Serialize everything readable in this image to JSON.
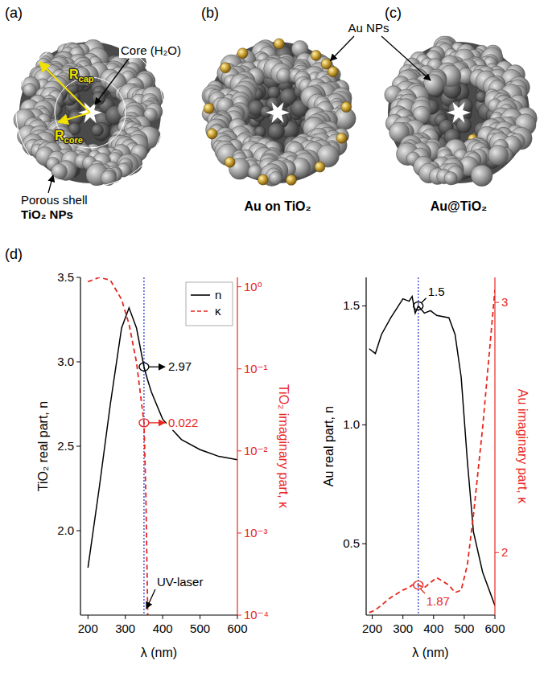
{
  "chart_data": [
    {
      "type": "line",
      "xlabel": "λ (nm)",
      "ylabel": "TiO₂ real part, n",
      "y2label": "TiO₂ imaginary part, κ",
      "x": [
        200,
        230,
        260,
        290,
        310,
        330,
        350,
        355,
        360,
        370,
        400,
        450,
        500,
        550,
        600
      ],
      "series": [
        {
          "name": "n",
          "color": "#000000",
          "line_style": "solid",
          "values": [
            1.78,
            2.25,
            2.75,
            3.2,
            3.32,
            3.2,
            2.97,
            2.93,
            2.89,
            2.82,
            2.66,
            2.54,
            2.48,
            2.44,
            2.42
          ]
        },
        {
          "name": "κ",
          "color": "#e8271f",
          "line_style": "dashed",
          "axis": "y2",
          "values": [
            1.15,
            1.3,
            1.2,
            0.7,
            0.35,
            0.12,
            0.022,
            0.003,
            0.0001,
            null,
            null,
            null,
            null,
            null,
            null
          ]
        }
      ],
      "xlim": [
        180,
        600
      ],
      "xticks": [
        200,
        300,
        400,
        500,
        600
      ],
      "ylim": [
        1.5,
        3.5
      ],
      "yticks": [
        {
          "value": 2,
          "label": "2.0"
        },
        2.5,
        {
          "value": 3,
          "label": "3.0"
        },
        3.5
      ],
      "y2lim": [
        0.0001,
        1.3
      ],
      "y2ticks": [
        {
          "value": 0.0001,
          "label": "10⁻⁴"
        },
        {
          "value": 0.001,
          "label": "10⁻³"
        },
        {
          "value": 0.01,
          "label": "10⁻²"
        },
        {
          "value": 0.1,
          "label": "10⁻¹"
        },
        {
          "value": 1,
          "label": "10⁰"
        }
      ],
      "log": "y2",
      "legend": "upper right",
      "vline": 350,
      "annotations": [
        {
          "text": "2.97",
          "x": 350,
          "y": 2.97
        },
        {
          "text": "0.022",
          "x": 350,
          "y": 0.022,
          "axis": "y2"
        },
        {
          "text": "UV-laser",
          "x": 350
        }
      ]
    },
    {
      "type": "line",
      "xlabel": "λ (nm)",
      "ylabel": "Au real part, n",
      "y2label": "Au imaginary part, κ",
      "x": [
        190,
        210,
        230,
        260,
        300,
        320,
        330,
        340,
        350,
        370,
        390,
        410,
        450,
        470,
        490,
        510,
        530,
        560,
        600
      ],
      "series": [
        {
          "color": "#000000",
          "line_style": "solid",
          "values": [
            1.32,
            1.3,
            1.38,
            1.45,
            1.53,
            1.52,
            1.54,
            1.47,
            1.5,
            1.47,
            1.48,
            1.46,
            1.45,
            1.38,
            1.2,
            0.85,
            0.55,
            0.38,
            0.24
          ]
        },
        {
          "color": "#e8271f",
          "line_style": "dashed",
          "axis": "y2",
          "values": [
            1.76,
            1.77,
            1.79,
            1.82,
            1.85,
            1.86,
            1.87,
            1.87,
            1.87,
            1.86,
            1.88,
            1.9,
            1.87,
            1.84,
            1.85,
            1.95,
            2.15,
            2.5,
            3.05
          ]
        }
      ],
      "xlim": [
        180,
        600
      ],
      "xticks": [
        200,
        300,
        400,
        500,
        600
      ],
      "ylim": [
        0.2,
        1.62
      ],
      "yticks": [
        0.5,
        {
          "value": 1,
          "label": "1.0"
        },
        1.5
      ],
      "y2lim": [
        1.75,
        3.1
      ],
      "y2ticks": [
        2,
        3
      ],
      "vline": 350,
      "annotations": [
        {
          "text": "1.5",
          "x": 350,
          "y": 1.5
        },
        {
          "text": "1.87",
          "x": 350,
          "y": 1.87,
          "axis": "y2"
        }
      ]
    }
  ],
  "figure": {
    "panel_labels": [
      "(a)",
      "(b)",
      "(c)",
      "(d)"
    ],
    "diagram": {
      "core_label": "Core (H₂O)",
      "r_cap": {
        "main": "R",
        "sub": "cap"
      },
      "r_core": {
        "main": "R",
        "sub": "core"
      },
      "shell_label": [
        "Porous shell",
        "TiO₂ NPs"
      ],
      "au_label": "Au NPs",
      "captions": [
        "Au on TiO₂",
        "Au@TiO₂"
      ]
    }
  }
}
